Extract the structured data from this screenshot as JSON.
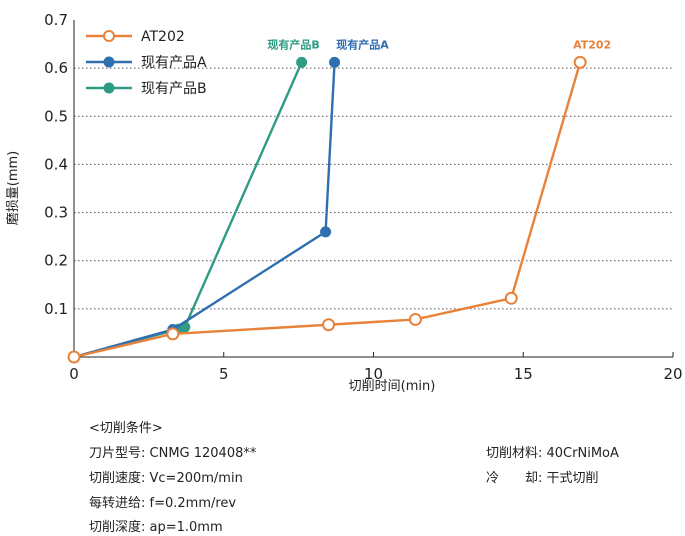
{
  "chart_data": {
    "type": "line",
    "xlabel": "切削时间(min)",
    "ylabel": "磨损量(mm)",
    "xlim": [
      0,
      20
    ],
    "ylim": [
      0,
      0.7
    ],
    "xticks": [
      0,
      5,
      10,
      15,
      20
    ],
    "yticks": [
      0.1,
      0.2,
      0.3,
      0.4,
      0.5,
      0.6,
      0.7
    ],
    "grid": "horizontal dotted",
    "legend_position": "top-left",
    "series": [
      {
        "name": "AT202",
        "color": "#e8823a",
        "marker": "hollow",
        "x": [
          0,
          3.3,
          8.5,
          11.4,
          14.6,
          16.9
        ],
        "y": [
          0,
          0.048,
          0.067,
          0.078,
          0.122,
          0.612
        ]
      },
      {
        "name": "现有产品A",
        "color": "#2f6fb0",
        "marker": "filled",
        "x": [
          0,
          3.3,
          8.4,
          8.7
        ],
        "y": [
          0,
          0.057,
          0.26,
          0.612
        ]
      },
      {
        "name": "现有产品B",
        "color": "#2e9b84",
        "marker": "filled",
        "x": [
          0,
          3.5,
          3.7,
          7.6
        ],
        "y": [
          0,
          0.058,
          0.062,
          0.612
        ]
      }
    ],
    "end_labels": [
      "现有产品B",
      "现有产品A",
      "AT202"
    ]
  },
  "conditions": {
    "header": "<切削条件>",
    "left": [
      "刀片型号: CNMG 120408**",
      "切削速度: Vc=200m/min",
      "每转进给: f=0.2mm/rev",
      "切削深度: ap=1.0mm"
    ],
    "right": [
      "切削材料: 40CrNiMoA",
      "冷　　却: 干式切削"
    ]
  }
}
